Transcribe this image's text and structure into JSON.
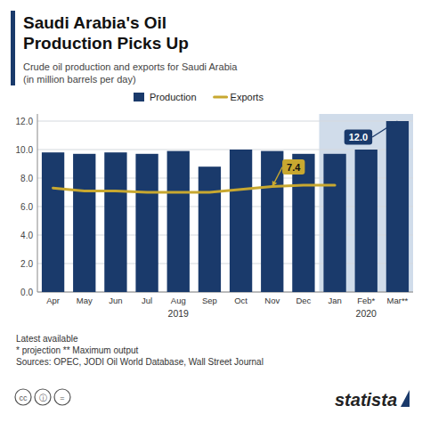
{
  "chart_data": {
    "type": "bar",
    "title": [
      "Saudi Arabia's Oil",
      "Production Picks Up"
    ],
    "subtitle": [
      "Crude oil production and exports for Saudi Arabia",
      "(in million barrels per day)"
    ],
    "categories": [
      "Apr",
      "May",
      "Jun",
      "Jul",
      "Aug",
      "Sep",
      "Oct",
      "Nov",
      "Dec",
      "Jan",
      "Feb*",
      "Mar**"
    ],
    "series": [
      {
        "name": "Production",
        "type": "bar",
        "color": "#1a3a6b",
        "values": [
          9.8,
          9.7,
          9.8,
          9.7,
          9.9,
          8.8,
          10.0,
          9.9,
          9.7,
          9.7,
          10.0,
          12.0
        ]
      },
      {
        "name": "Exports",
        "type": "line",
        "color": "#c8a830",
        "values": [
          7.3,
          7.1,
          7.1,
          7.0,
          7.0,
          7.0,
          7.2,
          7.4,
          7.5,
          7.5,
          null,
          null
        ]
      }
    ],
    "ylim": [
      0,
      12.5
    ],
    "yticks": [
      {
        "value": 0,
        "label": "0.0"
      },
      {
        "value": 2,
        "label": "2.0"
      },
      {
        "value": 4,
        "label": "4.0"
      },
      {
        "value": 6,
        "label": "6.0"
      },
      {
        "value": 8,
        "label": "8.0"
      },
      {
        "value": 10,
        "label": "10.0"
      },
      {
        "value": 12,
        "label": "12.0"
      }
    ],
    "grid": true,
    "legend": "top",
    "highlight": {
      "from": "Jan",
      "to": "Mar**",
      "color": "#d0dcea"
    },
    "annotations": [
      {
        "text": "12.0",
        "category": "Mar**",
        "value": 12.0,
        "series": "Production"
      },
      {
        "text": "7.4",
        "category": "Nov",
        "value": 7.4,
        "series": "Exports"
      }
    ],
    "year_labels": [
      {
        "text": "2019",
        "category": "Aug"
      },
      {
        "text": "2020",
        "category": "Feb*"
      }
    ],
    "notes": [
      "Latest available",
      "* projection ** Maximum output",
      "Sources: OPEC, JODI Oil World Database, Wall Street Journal"
    ],
    "license_icons": [
      "cc",
      "ⓘ",
      "="
    ],
    "brand": "statista"
  }
}
